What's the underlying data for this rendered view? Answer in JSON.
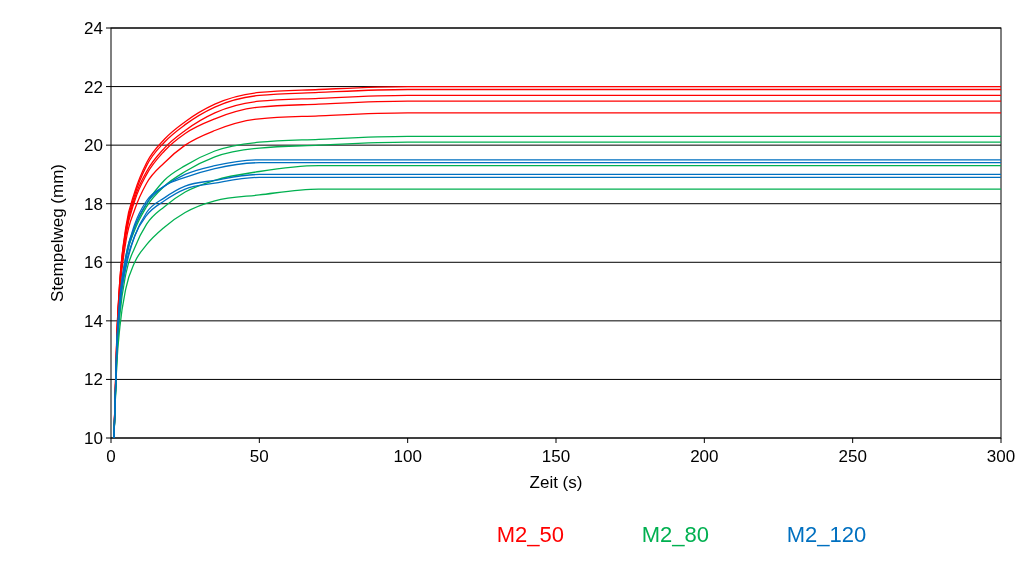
{
  "chart_data": {
    "type": "line",
    "xlabel": "Zeit (s)",
    "ylabel": "Stempelweg (mm)",
    "x": [
      1,
      2,
      3,
      5,
      8,
      12,
      18,
      25,
      35,
      50,
      70,
      100,
      300
    ],
    "xlim": [
      0,
      300
    ],
    "xticks": [
      0,
      50,
      100,
      150,
      200,
      250,
      300
    ],
    "ylim": [
      10,
      24
    ],
    "yticks": [
      10,
      12,
      14,
      16,
      18,
      20,
      22,
      24
    ],
    "grid": "y",
    "legend": "bottom",
    "marker": "none",
    "line_style": "solid",
    "series": [
      {
        "name": "M2_50",
        "color": "#ff0000",
        "values": [
          10,
          13.6,
          15.4,
          17.2,
          18.4,
          19.4,
          20.2,
          20.8,
          21.4,
          21.8,
          21.9,
          22,
          22
        ]
      },
      {
        "color": "#ff0000",
        "values": [
          10,
          13.6,
          15.4,
          17.1,
          18.3,
          19.3,
          20.1,
          20.7,
          21.3,
          21.7,
          21.8,
          21.9,
          21.9
        ]
      },
      {
        "color": "#ff0000",
        "values": [
          10,
          13.5,
          15.3,
          17.0,
          18.2,
          19.1,
          19.9,
          20.5,
          21.1,
          21.5,
          21.6,
          21.7,
          21.7
        ]
      },
      {
        "color": "#ff0000",
        "values": [
          10,
          13.5,
          15.2,
          16.9,
          18.1,
          19.0,
          19.8,
          20.4,
          20.9,
          21.3,
          21.4,
          21.5,
          21.5
        ]
      },
      {
        "color": "#ff0000",
        "values": [
          10,
          13.3,
          15.0,
          16.7,
          17.8,
          18.7,
          19.4,
          20.0,
          20.5,
          20.9,
          21.0,
          21.1,
          21.1
        ]
      },
      {
        "name": "M2_80",
        "color": "#00b050",
        "values": [
          10,
          13.1,
          14.6,
          16.2,
          17.2,
          18.0,
          18.8,
          19.3,
          19.8,
          20.1,
          20.2,
          20.3,
          20.3
        ]
      },
      {
        "color": "#00b050",
        "values": [
          10,
          13.0,
          14.5,
          16.1,
          17.1,
          17.9,
          18.6,
          19.1,
          19.6,
          19.9,
          20.0,
          20.1,
          20.1
        ]
      },
      {
        "color": "#00b050",
        "values": [
          10,
          12.8,
          14.2,
          15.6,
          16.5,
          17.3,
          17.9,
          18.4,
          18.8,
          19.1,
          19.3,
          19.3,
          19.3
        ]
      },
      {
        "color": "#00b050",
        "values": [
          10,
          12.6,
          13.8,
          15.1,
          16.0,
          16.6,
          17.2,
          17.7,
          18.1,
          18.3,
          18.5,
          18.5,
          18.5
        ]
      },
      {
        "name": "M2_120",
        "color": "#0070c0",
        "values": [
          10,
          13.3,
          14.8,
          16.2,
          17.3,
          18.1,
          18.6,
          19.0,
          19.3,
          19.5,
          19.5,
          19.5,
          19.5
        ]
      },
      {
        "color": "#0070c0",
        "values": [
          10,
          13.3,
          14.7,
          16.1,
          17.2,
          18.0,
          18.6,
          18.9,
          19.2,
          19.4,
          19.4,
          19.4,
          19.4
        ]
      },
      {
        "color": "#0070c0",
        "values": [
          10,
          13.2,
          14.5,
          15.9,
          16.9,
          17.7,
          18.2,
          18.6,
          18.8,
          19.0,
          19.0,
          19.0,
          19.0
        ]
      },
      {
        "color": "#0070c0",
        "values": [
          10,
          13.1,
          14.5,
          15.8,
          16.9,
          17.6,
          18.1,
          18.5,
          18.7,
          18.9,
          18.9,
          18.9,
          18.9
        ]
      }
    ]
  }
}
